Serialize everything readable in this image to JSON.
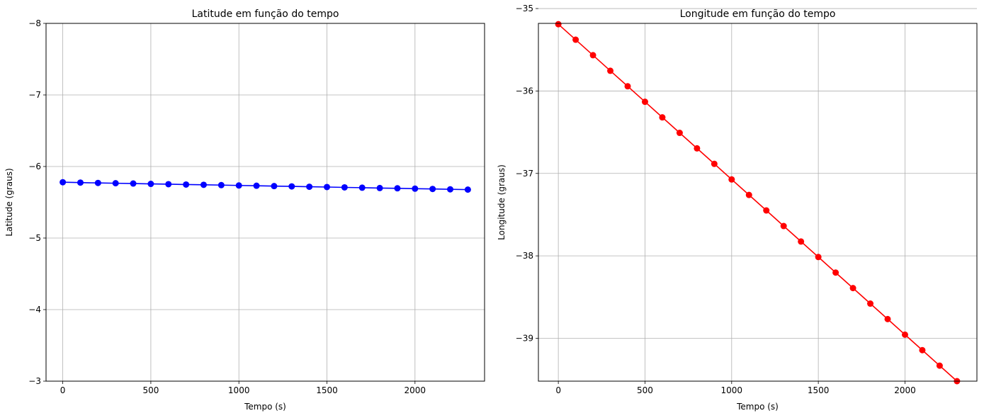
{
  "chart_data": [
    {
      "type": "line",
      "title": "Latitude em função do tempo",
      "xlabel": "Tempo (s)",
      "ylabel": "Latitude (graus)",
      "xlim": [
        -95,
        2395
      ],
      "ylim": [
        -3,
        -8
      ],
      "y_inverted": true,
      "xticks": [
        0,
        500,
        1000,
        1500,
        2000
      ],
      "xtick_labels": [
        "0",
        "500",
        "1000",
        "1500",
        "2000"
      ],
      "yticks": [
        -8,
        -7,
        -6,
        -5,
        -4,
        -3
      ],
      "ytick_labels": [
        "−8",
        "−7",
        "−6",
        "−5",
        "−4",
        "−3"
      ],
      "grid": true,
      "series": [
        {
          "color": "#0000ff",
          "marker": "circle",
          "x": [
            0,
            100,
            200,
            300,
            400,
            500,
            600,
            700,
            800,
            900,
            1000,
            1100,
            1200,
            1300,
            1400,
            1500,
            1600,
            1700,
            1800,
            1900,
            2000,
            2100,
            2200,
            2300
          ],
          "y": [
            -5.78,
            -5.775,
            -5.77,
            -5.766,
            -5.762,
            -5.757,
            -5.753,
            -5.748,
            -5.744,
            -5.74,
            -5.735,
            -5.731,
            -5.726,
            -5.722,
            -5.717,
            -5.713,
            -5.708,
            -5.704,
            -5.699,
            -5.695,
            -5.69,
            -5.686,
            -5.681,
            -5.677
          ]
        }
      ]
    },
    {
      "type": "line",
      "title": "Longitude em função do tempo",
      "xlabel": "Tempo (s)",
      "ylabel": "Longitude (graus)",
      "xlim": [
        -115,
        2415
      ],
      "ylim": [
        -39.52,
        -35.18
      ],
      "xticks": [
        0,
        500,
        1000,
        1500,
        2000
      ],
      "xtick_labels": [
        "0",
        "500",
        "1000",
        "1500",
        "2000"
      ],
      "yticks": [
        -35,
        -36,
        -37,
        -38,
        -39
      ],
      "ytick_labels": [
        "−35",
        "−36",
        "−37",
        "−38",
        "−39"
      ],
      "grid": true,
      "series": [
        {
          "color": "#ff0000",
          "marker": "circle",
          "x": [
            0,
            100,
            200,
            300,
            400,
            500,
            600,
            700,
            800,
            900,
            1000,
            1100,
            1200,
            1300,
            1400,
            1500,
            1600,
            1700,
            1800,
            1900,
            2000,
            2100,
            2200,
            2300
          ],
          "y": [
            -35.19,
            -35.378,
            -35.566,
            -35.755,
            -35.943,
            -36.131,
            -36.32,
            -36.508,
            -36.696,
            -36.884,
            -37.073,
            -37.261,
            -37.449,
            -37.638,
            -37.826,
            -38.014,
            -38.203,
            -38.391,
            -38.579,
            -38.767,
            -38.956,
            -39.144,
            -39.332,
            -39.52
          ]
        }
      ]
    }
  ]
}
